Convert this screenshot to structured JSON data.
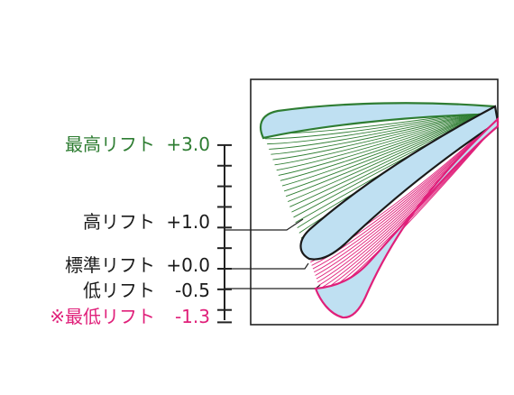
{
  "colors": {
    "green": "#2e7d32",
    "pink": "#e0207a",
    "black": "#1a1a1a",
    "blade_fill": "#bfe0f2",
    "frame": "#222222"
  },
  "lift_levels": [
    {
      "name": "最高リフト",
      "value": "+3.0",
      "lift": 3.0,
      "color": "#2e7d32"
    },
    {
      "name": "高リフト",
      "value": "+1.0",
      "lift": 1.0,
      "color": "#1a1a1a"
    },
    {
      "name": "標準リフト",
      "value": "+0.0",
      "lift": 0.0,
      "color": "#1a1a1a"
    },
    {
      "name": "低リフト",
      "value": "-0.5",
      "lift": -0.5,
      "color": "#1a1a1a"
    },
    {
      "name": "※最低リフト",
      "value": "-1.3",
      "lift": -1.3,
      "color": "#e0207a"
    }
  ]
}
